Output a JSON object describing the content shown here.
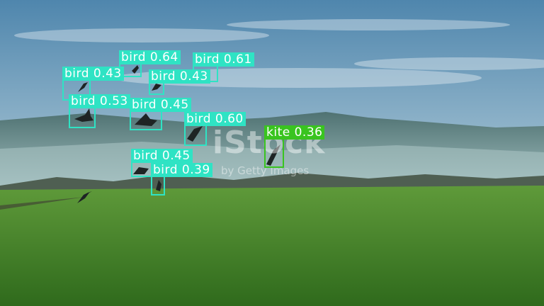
{
  "watermark": {
    "brand": "iStock",
    "credit": "by Getty Images"
  },
  "colors": {
    "bird_box": "#2fe3c4",
    "kite_box": "#39c41f",
    "label_text": "#ffffff"
  },
  "detections": [
    {
      "class": "bird",
      "score": "0.64",
      "label": "bird 0.64"
    },
    {
      "class": "bird",
      "score": "0.61",
      "label": "bird 0.61"
    },
    {
      "class": "bird",
      "score": "0.43",
      "label": "bird 0.43"
    },
    {
      "class": "bird",
      "score": "0.43",
      "label": "bird 0.43"
    },
    {
      "class": "bird",
      "score": "0.53",
      "label": "bird 0.53"
    },
    {
      "class": "bird",
      "score": "0.45",
      "label": "bird 0.45"
    },
    {
      "class": "bird",
      "score": "0.60",
      "label": "bird 0.60"
    },
    {
      "class": "kite",
      "score": "0.36",
      "label": "kite 0.36"
    },
    {
      "class": "bird",
      "score": "0.45",
      "label": "bird 0.45"
    },
    {
      "class": "bird",
      "score": "0.39",
      "label": "bird 0.39"
    }
  ]
}
